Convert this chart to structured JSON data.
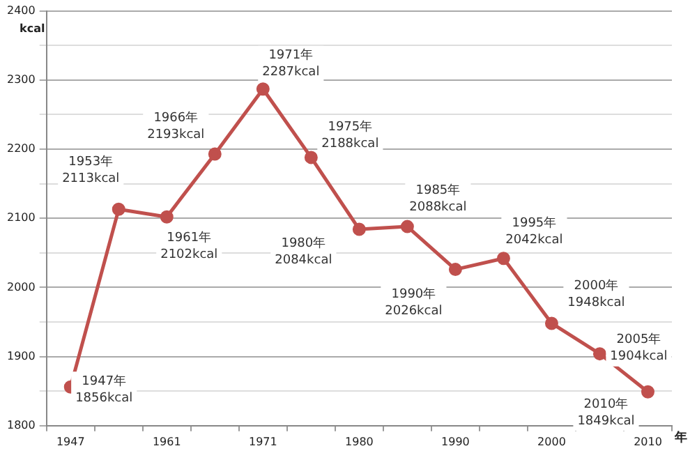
{
  "chart_data": {
    "type": "line",
    "ylabel": "kcal",
    "xlabel": "年",
    "categories": [
      "1947",
      null,
      "1961",
      null,
      "1971",
      null,
      "1980",
      null,
      "1990",
      null,
      "2000",
      null,
      "2010"
    ],
    "series": [
      {
        "color": "#c0504d",
        "values": [
          1856,
          2113,
          2102,
          2193,
          2287,
          2188,
          2084,
          2088,
          2026,
          2042,
          1948,
          1904,
          1849
        ],
        "value_labels": [
          "1947年\n1856kcal",
          "1953年\n2113kcal",
          "1961年\n2102kcal",
          "1966年\n2193kcal",
          "1971年\n2287kcal",
          "1975年\n2188kcal",
          "1980年\n2084kcal",
          "1985年\n2088kcal",
          "1990年\n2026kcal",
          "1995年\n2042kcal",
          "2000年\n1948kcal",
          "2005年\n1904kcal",
          "2010年\n1849kcal"
        ]
      }
    ],
    "ylim": [
      1800,
      2400
    ],
    "yticks": [
      1800,
      {
        "value": 1850,
        "label": null
      },
      1900,
      {
        "value": 1950,
        "label": null
      },
      2000,
      {
        "value": 2050,
        "label": null
      },
      2100,
      {
        "value": 2150,
        "label": null
      },
      2200,
      {
        "value": 2250,
        "label": null
      },
      2300,
      {
        "value": 2350,
        "label": null
      },
      2400
    ],
    "grid": "y",
    "legend": false,
    "marker": "circle",
    "line_style": "solid"
  }
}
